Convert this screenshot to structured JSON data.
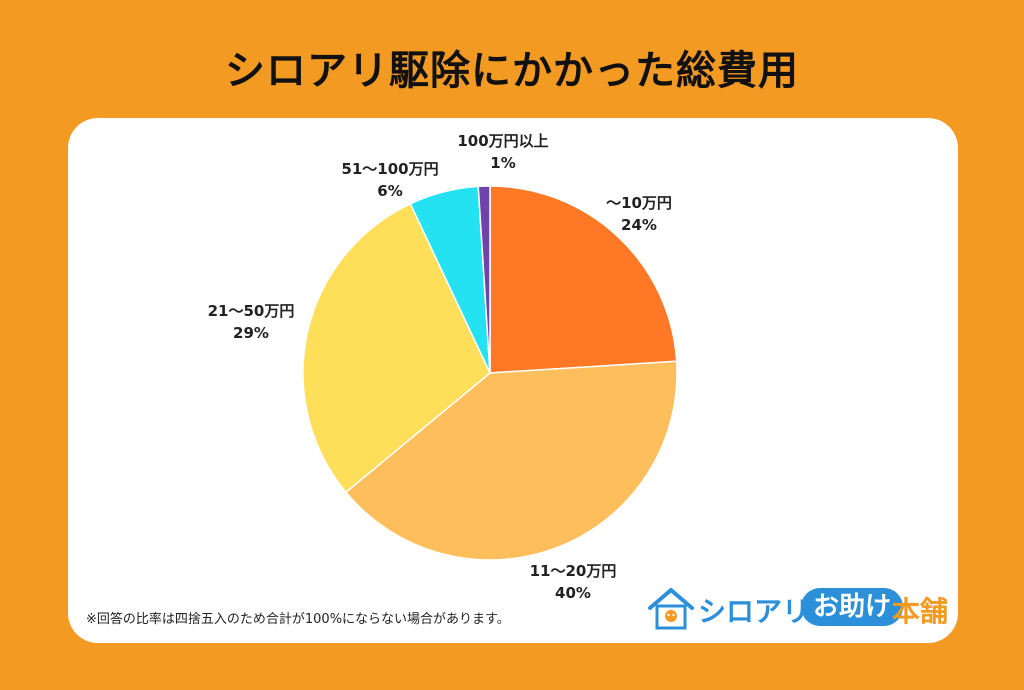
{
  "title": "シロアリ駆除にかかった総費用",
  "chart_data": {
    "type": "pie",
    "slices": [
      {
        "label": "〜10万円",
        "value": 24,
        "pct": "24%",
        "color": "#FF7825"
      },
      {
        "label": "11〜20万円",
        "value": 40,
        "pct": "40%",
        "color": "#FFBE5C"
      },
      {
        "label": "21〜50万円",
        "value": 29,
        "pct": "29%",
        "color": "#FFDE59"
      },
      {
        "label": "51〜100万円",
        "value": 6,
        "pct": "6%",
        "color": "#25E2F3"
      },
      {
        "label": "100万円以上",
        "value": 1,
        "pct": "1%",
        "color": "#6F44A9"
      }
    ]
  },
  "note": "※回答の比率は四捨五入のため合計が100%にならない場合があります。",
  "logo": {
    "text_main": "シロアリ",
    "text_badge": "お助け",
    "text_tail": "本舗",
    "primary_color": "#2B8FD9",
    "accent_color": "#F39A23"
  }
}
